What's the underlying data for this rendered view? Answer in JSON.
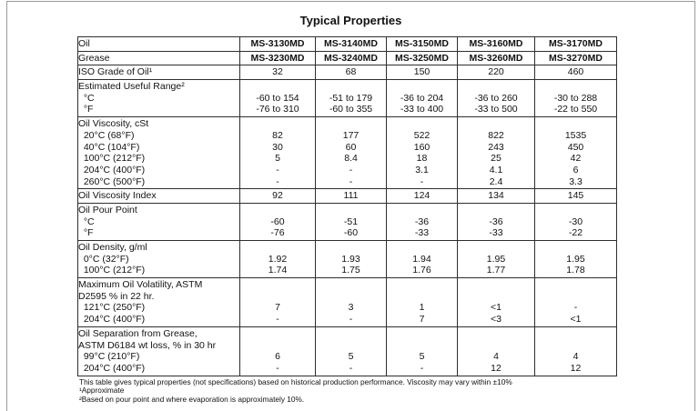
{
  "page": {
    "title": "Typical Properties"
  },
  "table": {
    "products": {
      "oils": [
        "MS-3130MD",
        "MS-3140MD",
        "MS-3150MD",
        "MS-3160MD",
        "MS-3170MD"
      ],
      "greases": [
        "MS-3230MD",
        "MS-3240MD",
        "MS-3250MD",
        "MS-3260MD",
        "MS-3270MD"
      ]
    },
    "rows": [
      {
        "label_lines": [
          "Oil"
        ],
        "value_lines": [
          [
            "MS-3130MD",
            "MS-3140MD",
            "MS-3150MD",
            "MS-3160MD",
            "MS-3170MD"
          ]
        ],
        "bold": true
      },
      {
        "label_lines": [
          "Grease"
        ],
        "value_lines": [
          [
            "MS-3230MD",
            "MS-3240MD",
            "MS-3250MD",
            "MS-3260MD",
            "MS-3270MD"
          ]
        ],
        "bold": true
      },
      {
        "label_lines": [
          "ISO Grade of Oil¹"
        ],
        "value_lines": [
          [
            "32",
            "68",
            "150",
            "220",
            "460"
          ]
        ]
      },
      {
        "label_lines": [
          "Estimated Useful Range²",
          "  °C",
          "  °F"
        ],
        "value_lines": [
          [],
          [
            "-60 to 154",
            "-51 to 179",
            "-36 to 204",
            "-36 to 260",
            "-30 to 288"
          ],
          [
            "-76 to 310",
            "-60 to 355",
            "-33 to 400",
            "-33 to 500",
            "-22 to 550"
          ]
        ]
      },
      {
        "label_lines": [
          "Oil Viscosity, cSt",
          "  20°C (68°F)",
          "  40°C (104°F)",
          "  100°C (212°F)",
          "  204°C (400°F)",
          "  260°C (500°F)"
        ],
        "value_lines": [
          [],
          [
            "82",
            "177",
            "522",
            "822",
            "1535"
          ],
          [
            "30",
            "60",
            "160",
            "243",
            "450"
          ],
          [
            "5",
            "8.4",
            "18",
            "25",
            "42"
          ],
          [
            "-",
            "-",
            "3.1",
            "4.1",
            "6"
          ],
          [
            "-",
            "-",
            "-",
            "2.4",
            "3.3"
          ]
        ]
      },
      {
        "label_lines": [
          "Oil Viscosity Index"
        ],
        "value_lines": [
          [
            "92",
            "111",
            "124",
            "134",
            "145"
          ]
        ]
      },
      {
        "label_lines": [
          "Oil Pour Point",
          "  °C",
          "  °F"
        ],
        "value_lines": [
          [],
          [
            "-60",
            "-51",
            "-36",
            "-36",
            "-30"
          ],
          [
            "-76",
            "-60",
            "-33",
            "-33",
            "-22"
          ]
        ]
      },
      {
        "label_lines": [
          "Oil Density, g/ml",
          "  0°C (32°F)",
          "  100°C (212°F)"
        ],
        "value_lines": [
          [],
          [
            "1.92",
            "1.93",
            "1.94",
            "1.95",
            "1.95"
          ],
          [
            "1.74",
            "1.75",
            "1.76",
            "1.77",
            "1.78"
          ]
        ]
      },
      {
        "label_lines": [
          "Maximum Oil Volatility, ASTM",
          "D2595 % in 22 hr.",
          "  121°C (250°F)",
          "  204°C (400°F)"
        ],
        "value_lines": [
          [],
          [],
          [
            "7",
            "3",
            "1",
            "<1",
            "-"
          ],
          [
            "-",
            "-",
            "7",
            "<3",
            "<1"
          ]
        ]
      },
      {
        "label_lines": [
          "Oil Separation from Grease,",
          "ASTM D6184 wt loss, % in 30 hr",
          "  99°C (210°F)",
          "  204°C (400°F)"
        ],
        "value_lines": [
          [],
          [],
          [
            "6",
            "5",
            "5",
            "4",
            "4"
          ],
          [
            "-",
            "-",
            "-",
            "12",
            "12"
          ]
        ]
      }
    ]
  },
  "footnotes": [
    "This table gives typical properties (not specifications) based on historical production performance. Viscosity may vary within ±10%",
    "¹Approximate",
    "²Based on pour point and where evaporation is approximately 10%."
  ]
}
